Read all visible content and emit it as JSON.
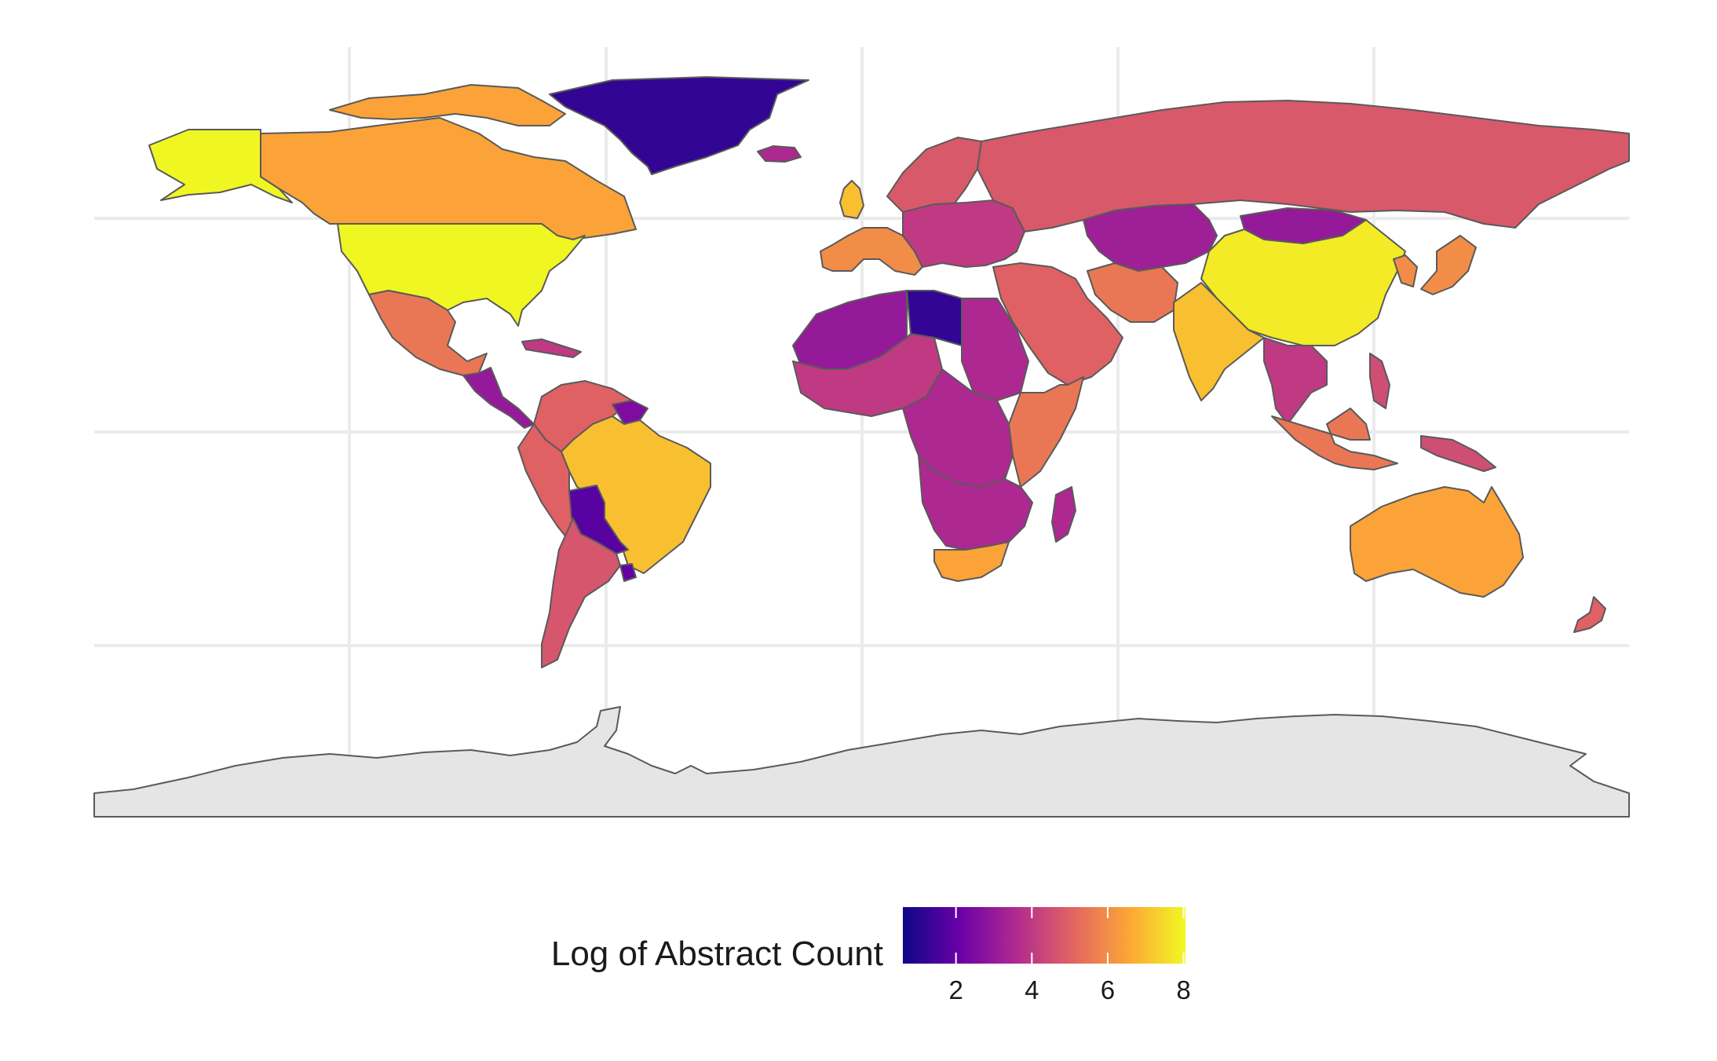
{
  "legend": {
    "title": "Log of Abstract Count",
    "ticks": [
      2,
      4,
      6,
      8
    ],
    "range": [
      0.6,
      8.05
    ],
    "colors": [
      "#0d0887",
      "#6a00a8",
      "#b12a90",
      "#e16462",
      "#fca636",
      "#f0f921"
    ]
  },
  "map": {
    "projection": "equirectangular",
    "grid": "on",
    "no_data_color": "#e5e5e5",
    "regions": [
      {
        "id": "greenland",
        "value": 1.2
      },
      {
        "id": "iceland",
        "value": 3.5
      },
      {
        "id": "alaska",
        "value": 8.0
      },
      {
        "id": "canada",
        "value": 6.5
      },
      {
        "id": "canada-islands",
        "value": 6.5
      },
      {
        "id": "usa",
        "value": 8.0
      },
      {
        "id": "mexico",
        "value": 5.5
      },
      {
        "id": "central-america",
        "value": 3.0
      },
      {
        "id": "caribbean",
        "value": 4.0
      },
      {
        "id": "colombia-venezuela",
        "value": 5.0
      },
      {
        "id": "guianas",
        "value": 2.5
      },
      {
        "id": "peru-ecuador",
        "value": 5.0
      },
      {
        "id": "brazil",
        "value": 7.0
      },
      {
        "id": "bolivia-paraguay",
        "value": 1.8
      },
      {
        "id": "chile-argentina",
        "value": 4.7
      },
      {
        "id": "uruguay",
        "value": 2.0
      },
      {
        "id": "uk",
        "value": 7.0
      },
      {
        "id": "western-europe",
        "value": 6.0
      },
      {
        "id": "scandinavia",
        "value": 4.8
      },
      {
        "id": "eastern-europe",
        "value": 4.0
      },
      {
        "id": "russia",
        "value": 4.8
      },
      {
        "id": "central-asia",
        "value": 3.2
      },
      {
        "id": "mongolia",
        "value": 3.0
      },
      {
        "id": "china",
        "value": 7.8
      },
      {
        "id": "korea-japan",
        "value": 6.0
      },
      {
        "id": "middle-east",
        "value": 5.0
      },
      {
        "id": "iran",
        "value": 5.5
      },
      {
        "id": "india",
        "value": 7.0
      },
      {
        "id": "southeast-asia",
        "value": 4.0
      },
      {
        "id": "indonesia",
        "value": 5.5
      },
      {
        "id": "philippines",
        "value": 4.5
      },
      {
        "id": "papua",
        "value": 4.5
      },
      {
        "id": "australia",
        "value": 6.5
      },
      {
        "id": "new-zealand",
        "value": 5.0
      },
      {
        "id": "north-africa-west",
        "value": 3.0
      },
      {
        "id": "libya",
        "value": 1.2
      },
      {
        "id": "egypt-sudan",
        "value": 3.5
      },
      {
        "id": "west-africa",
        "value": 4.0
      },
      {
        "id": "central-africa",
        "value": 3.5
      },
      {
        "id": "east-africa",
        "value": 5.5
      },
      {
        "id": "southern-africa",
        "value": 3.5
      },
      {
        "id": "south-africa",
        "value": 6.5
      },
      {
        "id": "madagascar",
        "value": 3.5
      },
      {
        "id": "antarctica",
        "value": null
      }
    ]
  }
}
